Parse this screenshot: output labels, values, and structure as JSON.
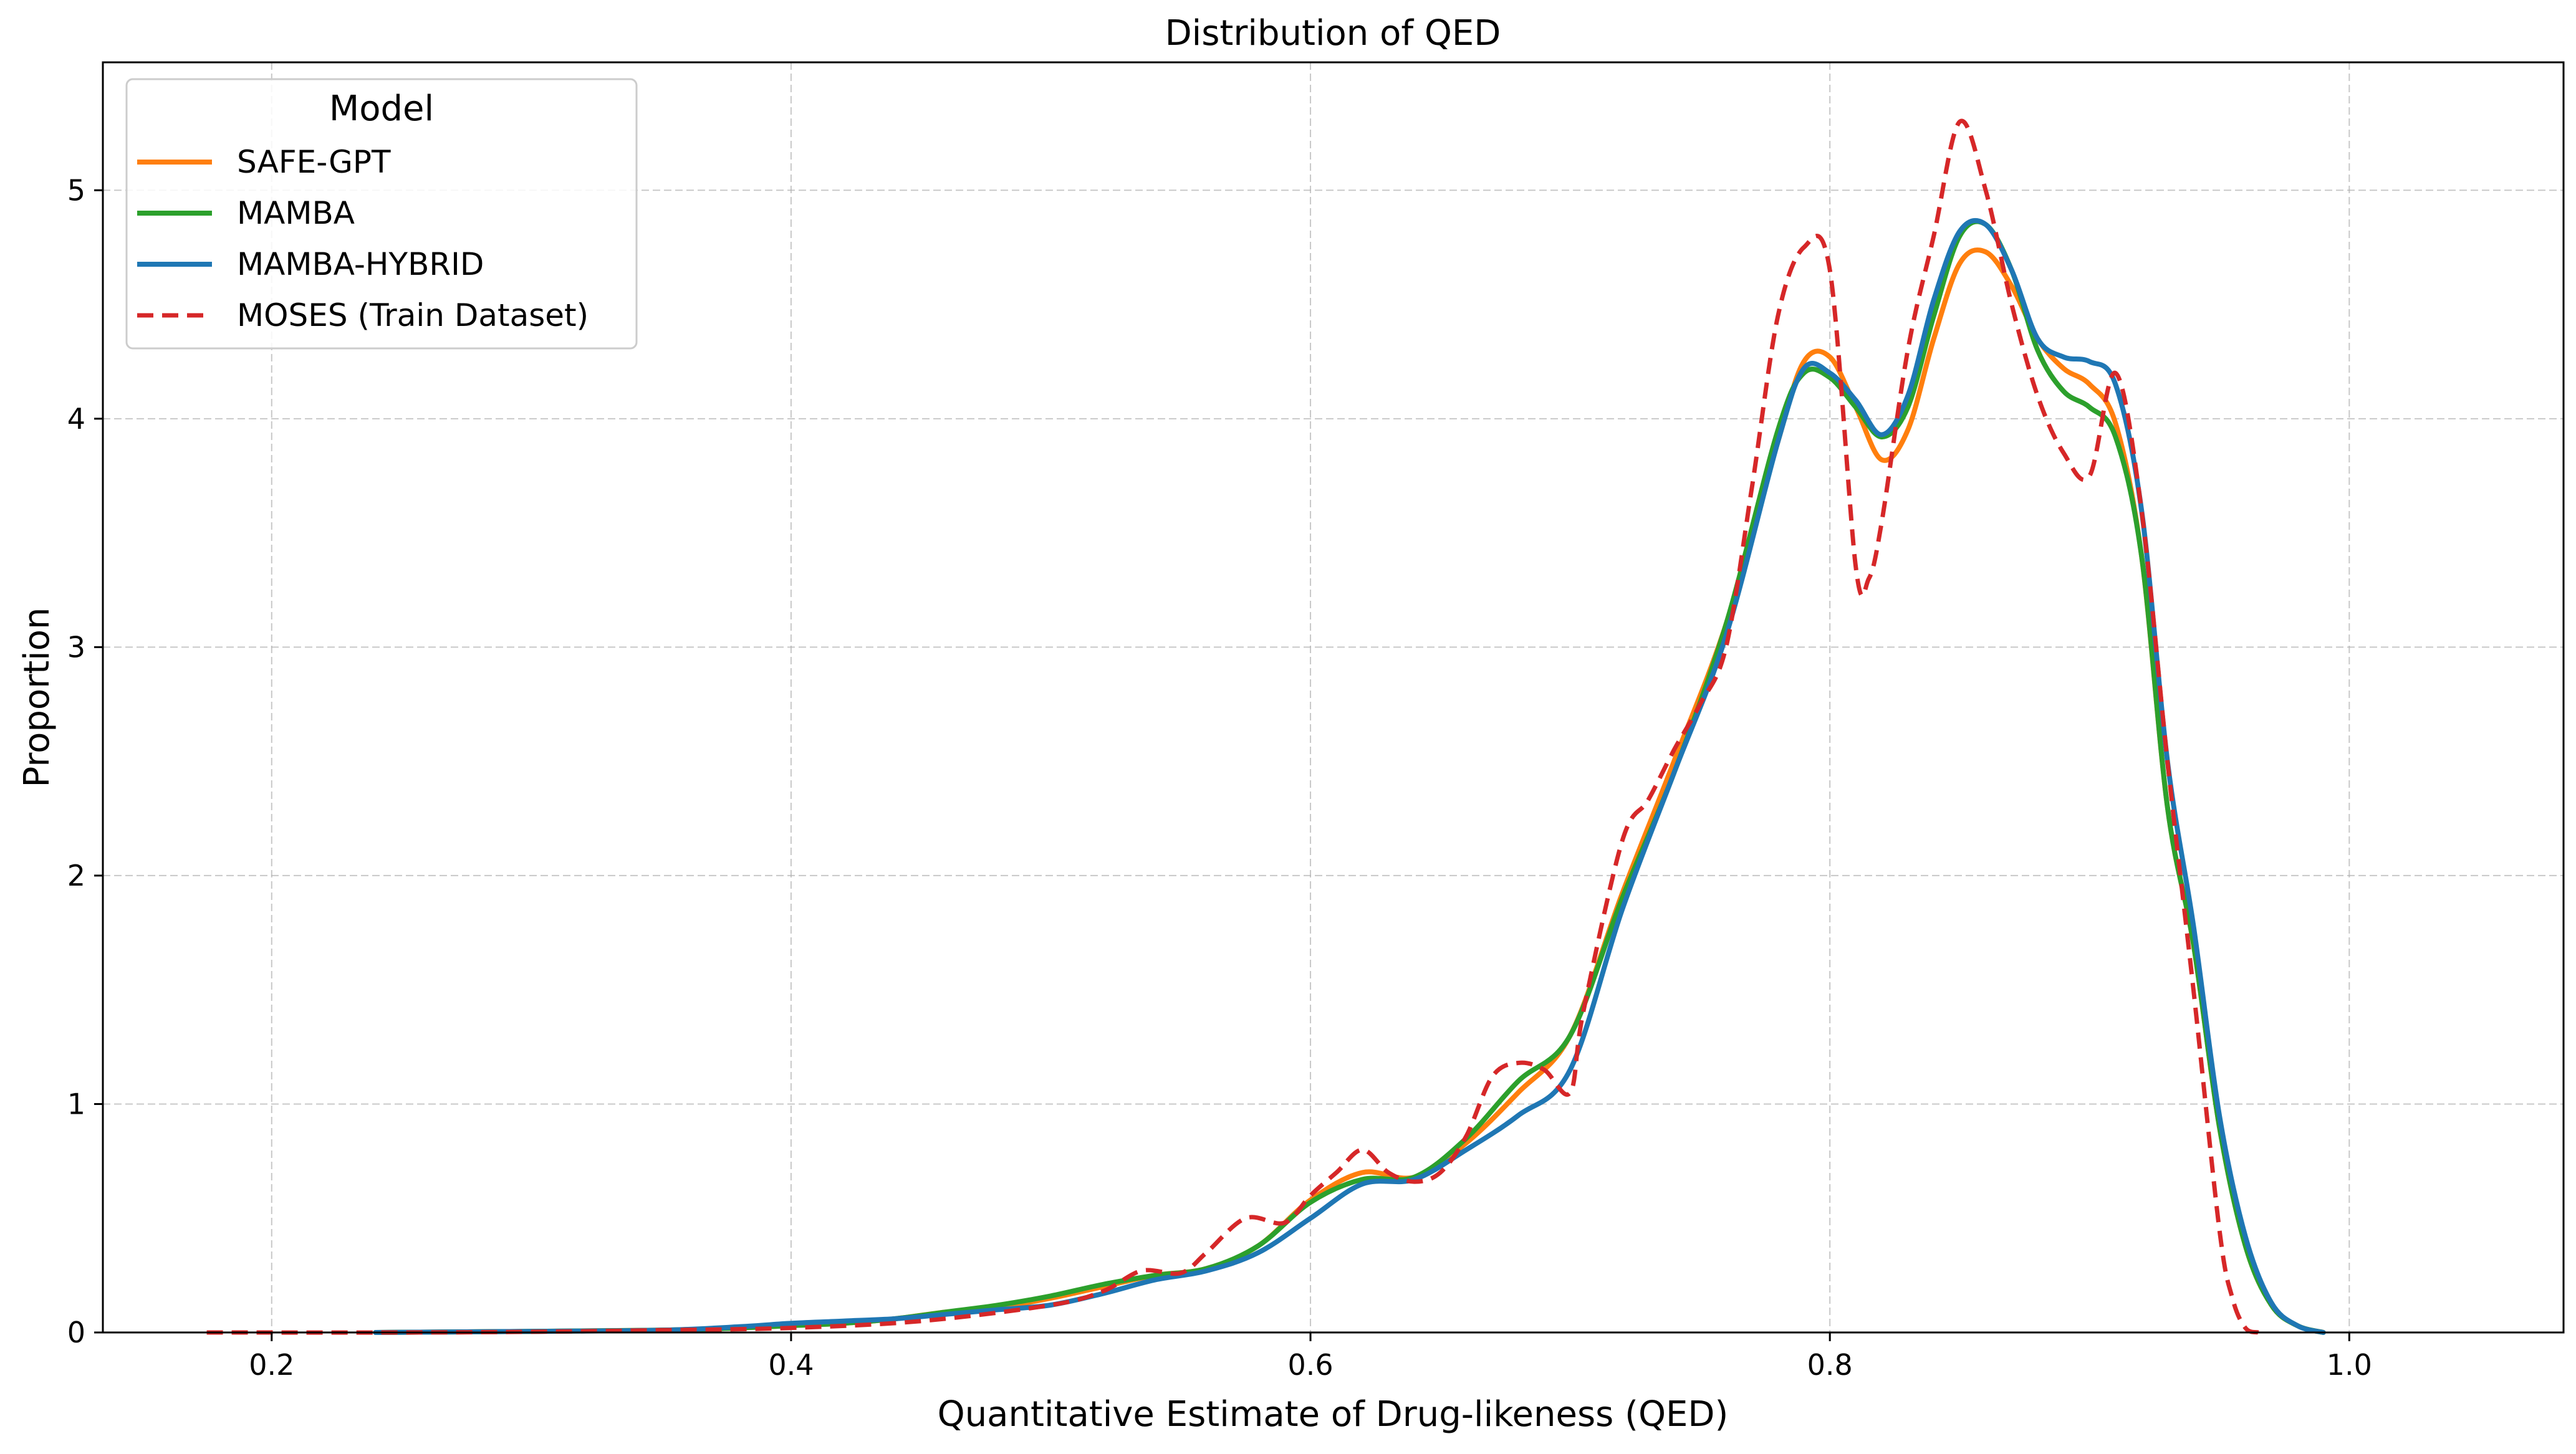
{
  "chart_data": {
    "type": "line",
    "title": "Distribution of QED",
    "xlabel": "Quantitative Estimate of Drug-likeness (QED)",
    "ylabel": "Proportion",
    "xlim": [
      0.135,
      1.0825
    ],
    "ylim": [
      0,
      5.56
    ],
    "xticks": [
      0.2,
      0.4,
      0.6,
      0.8,
      1.0
    ],
    "xtick_labels": [
      "0.2",
      "0.4",
      "0.6",
      "0.8",
      "1.0"
    ],
    "yticks": [
      0,
      1,
      2,
      3,
      4,
      5
    ],
    "ytick_labels": [
      "0",
      "1",
      "2",
      "3",
      "4",
      "5"
    ],
    "grid": true,
    "legend": {
      "title": "Model",
      "placement": "top-left",
      "entries": [
        "SAFE-GPT",
        "MAMBA",
        "MAMBA-HYBRID",
        "MOSES (Train Dataset)"
      ]
    },
    "series": [
      {
        "name": "SAFE-GPT",
        "color": "#ff7f0e",
        "style": "solid",
        "x": [
          0.24,
          0.3,
          0.35,
          0.38,
          0.4,
          0.42,
          0.44,
          0.46,
          0.48,
          0.5,
          0.52,
          0.54,
          0.56,
          0.58,
          0.6,
          0.62,
          0.64,
          0.66,
          0.68,
          0.7,
          0.72,
          0.74,
          0.76,
          0.78,
          0.79,
          0.8,
          0.81,
          0.82,
          0.83,
          0.84,
          0.85,
          0.86,
          0.87,
          0.88,
          0.89,
          0.9,
          0.91,
          0.92,
          0.93,
          0.94,
          0.95,
          0.96,
          0.97,
          0.98,
          0.99
        ],
        "y": [
          0.0,
          0.005,
          0.01,
          0.02,
          0.03,
          0.04,
          0.06,
          0.09,
          0.11,
          0.15,
          0.2,
          0.25,
          0.28,
          0.38,
          0.58,
          0.7,
          0.68,
          0.83,
          1.05,
          1.3,
          1.92,
          2.5,
          3.1,
          3.9,
          4.25,
          4.27,
          4.05,
          3.82,
          3.95,
          4.35,
          4.68,
          4.73,
          4.58,
          4.35,
          4.22,
          4.15,
          3.98,
          3.4,
          2.3,
          1.7,
          0.9,
          0.38,
          0.12,
          0.03,
          0.0
        ]
      },
      {
        "name": "MAMBA",
        "color": "#2ca02c",
        "style": "solid",
        "x": [
          0.24,
          0.3,
          0.35,
          0.38,
          0.4,
          0.42,
          0.44,
          0.46,
          0.48,
          0.5,
          0.52,
          0.54,
          0.56,
          0.58,
          0.6,
          0.62,
          0.64,
          0.66,
          0.68,
          0.7,
          0.72,
          0.74,
          0.76,
          0.78,
          0.79,
          0.8,
          0.81,
          0.82,
          0.83,
          0.84,
          0.85,
          0.86,
          0.87,
          0.88,
          0.89,
          0.9,
          0.91,
          0.92,
          0.93,
          0.94,
          0.95,
          0.96,
          0.97,
          0.98,
          0.99
        ],
        "y": [
          0.0,
          0.005,
          0.01,
          0.02,
          0.03,
          0.04,
          0.06,
          0.09,
          0.12,
          0.16,
          0.21,
          0.25,
          0.28,
          0.38,
          0.57,
          0.67,
          0.68,
          0.85,
          1.1,
          1.3,
          1.9,
          2.45,
          3.1,
          3.95,
          4.2,
          4.18,
          4.05,
          3.92,
          4.05,
          4.45,
          4.8,
          4.85,
          4.65,
          4.3,
          4.12,
          4.05,
          3.92,
          3.4,
          2.3,
          1.7,
          0.9,
          0.38,
          0.12,
          0.03,
          0.0
        ]
      },
      {
        "name": "MAMBA-HYBRID",
        "color": "#1f77b4",
        "style": "solid",
        "x": [
          0.24,
          0.3,
          0.35,
          0.38,
          0.4,
          0.42,
          0.44,
          0.46,
          0.48,
          0.5,
          0.52,
          0.54,
          0.56,
          0.58,
          0.6,
          0.62,
          0.64,
          0.66,
          0.68,
          0.7,
          0.72,
          0.74,
          0.76,
          0.78,
          0.79,
          0.8,
          0.81,
          0.82,
          0.83,
          0.84,
          0.85,
          0.86,
          0.87,
          0.88,
          0.89,
          0.9,
          0.91,
          0.92,
          0.93,
          0.94,
          0.95,
          0.96,
          0.97,
          0.98,
          0.99
        ],
        "y": [
          0.0,
          0.005,
          0.01,
          0.025,
          0.04,
          0.05,
          0.06,
          0.08,
          0.1,
          0.12,
          0.17,
          0.23,
          0.27,
          0.35,
          0.5,
          0.65,
          0.67,
          0.8,
          0.95,
          1.15,
          1.85,
          2.45,
          3.05,
          3.9,
          4.22,
          4.2,
          4.08,
          3.93,
          4.1,
          4.52,
          4.82,
          4.85,
          4.65,
          4.35,
          4.27,
          4.25,
          4.15,
          3.6,
          2.5,
          1.78,
          0.95,
          0.42,
          0.13,
          0.03,
          0.0
        ]
      },
      {
        "name": "MOSES (Train Dataset)",
        "color": "#d62728",
        "style": "dashed",
        "x": [
          0.175,
          0.25,
          0.3,
          0.35,
          0.4,
          0.45,
          0.5,
          0.52,
          0.535,
          0.55,
          0.56,
          0.575,
          0.59,
          0.6,
          0.61,
          0.62,
          0.63,
          0.64,
          0.65,
          0.66,
          0.67,
          0.68,
          0.69,
          0.7,
          0.705,
          0.72,
          0.73,
          0.74,
          0.75,
          0.76,
          0.77,
          0.78,
          0.79,
          0.8,
          0.81,
          0.815,
          0.82,
          0.83,
          0.84,
          0.85,
          0.86,
          0.87,
          0.88,
          0.89,
          0.9,
          0.91,
          0.92,
          0.93,
          0.94,
          0.95,
          0.955,
          0.96,
          0.965
        ],
        "y": [
          0.0,
          0.0,
          0.003,
          0.01,
          0.02,
          0.05,
          0.12,
          0.18,
          0.27,
          0.26,
          0.35,
          0.5,
          0.48,
          0.6,
          0.7,
          0.8,
          0.7,
          0.66,
          0.7,
          0.86,
          1.12,
          1.18,
          1.15,
          1.05,
          1.4,
          2.15,
          2.33,
          2.55,
          2.75,
          3.0,
          3.7,
          4.45,
          4.75,
          4.65,
          3.35,
          3.3,
          3.55,
          4.3,
          4.8,
          5.3,
          5.0,
          4.5,
          4.1,
          3.85,
          3.75,
          4.2,
          3.6,
          2.5,
          1.5,
          0.45,
          0.15,
          0.02,
          0.0
        ]
      }
    ]
  }
}
